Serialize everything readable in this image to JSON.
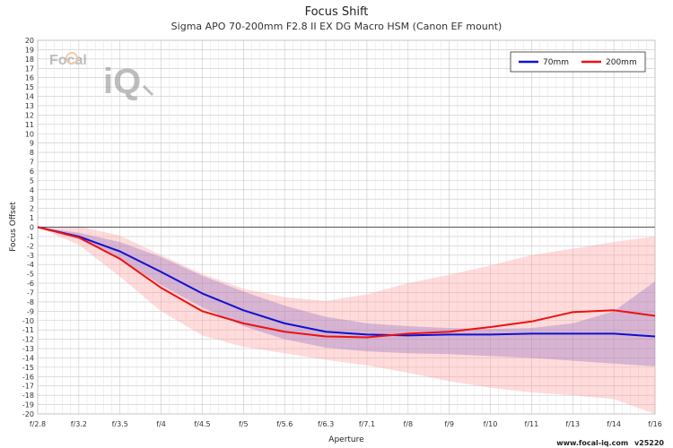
{
  "chart_data": {
    "type": "line",
    "title": "Focus Shift",
    "subtitle": "Sigma APO 70-200mm F2.8 II EX DG Macro HSM (Canon EF mount)",
    "xlabel": "Aperture",
    "ylabel": "Focus Offset",
    "categories": [
      "f/2.8",
      "f/3.2",
      "f/3.5",
      "f/4",
      "f/4.5",
      "f/5",
      "f/5.6",
      "f/6.3",
      "f/7.1",
      "f/8",
      "f/9",
      "f/10",
      "f/11",
      "f/13",
      "f/14",
      "f/16"
    ],
    "ylim": [
      -20,
      20
    ],
    "yticks": [
      20,
      19,
      18,
      17,
      16,
      15,
      14,
      13,
      12,
      11,
      10,
      9,
      8,
      7,
      6,
      5,
      4,
      3,
      2,
      1,
      0,
      -1,
      -2,
      -3,
      -4,
      -5,
      -6,
      -7,
      -8,
      -9,
      -10,
      -11,
      -12,
      -13,
      -14,
      -15,
      -16,
      -17,
      -18,
      -19,
      -20
    ],
    "grid": true,
    "legend_position": "top-right",
    "series": [
      {
        "name": "70mm",
        "color": "#1010d0",
        "band_color": "#8a6cc4",
        "values": [
          0,
          -1,
          -2.6,
          -4.8,
          -7.1,
          -8.9,
          -10.3,
          -11.2,
          -11.5,
          -11.6,
          -11.5,
          -11.5,
          -11.4,
          -11.4,
          -11.4,
          -11.7
        ],
        "band_upper": [
          0,
          -0.6,
          -1.6,
          -3.2,
          -5.2,
          -6.9,
          -8.4,
          -9.6,
          -10.3,
          -10.6,
          -10.8,
          -10.9,
          -10.8,
          -10.3,
          -9.0,
          -5.8
        ],
        "band_lower": [
          0,
          -1.3,
          -3.4,
          -6.2,
          -8.6,
          -10.6,
          -12.0,
          -12.9,
          -13.3,
          -13.5,
          -13.6,
          -13.8,
          -14.0,
          -14.3,
          -14.6,
          -14.9
        ]
      },
      {
        "name": "200mm",
        "color": "#ee1111",
        "band_color": "#ff9999",
        "values": [
          0,
          -1.1,
          -3.4,
          -6.5,
          -9.0,
          -10.3,
          -11.2,
          -11.7,
          -11.8,
          -11.4,
          -11.2,
          -10.7,
          -10.1,
          -9.1,
          -8.9,
          -9.5
        ],
        "band_upper": [
          0,
          0.1,
          -0.9,
          -3.0,
          -5.0,
          -6.6,
          -7.5,
          -7.9,
          -7.2,
          -6.0,
          -5.1,
          -4.1,
          -3.0,
          -2.3,
          -1.6,
          -1.0
        ],
        "band_lower": [
          0,
          -1.9,
          -5.3,
          -9.0,
          -11.6,
          -12.8,
          -13.5,
          -14.2,
          -14.8,
          -15.6,
          -16.5,
          -17.2,
          -17.7,
          -18.0,
          -18.4,
          -20
        ]
      }
    ]
  },
  "watermark": {
    "logo_text_focal": "Focal",
    "logo_text_iq": "iQ"
  },
  "footer": {
    "url": "www.focal-iq.com",
    "version": "v25220"
  }
}
